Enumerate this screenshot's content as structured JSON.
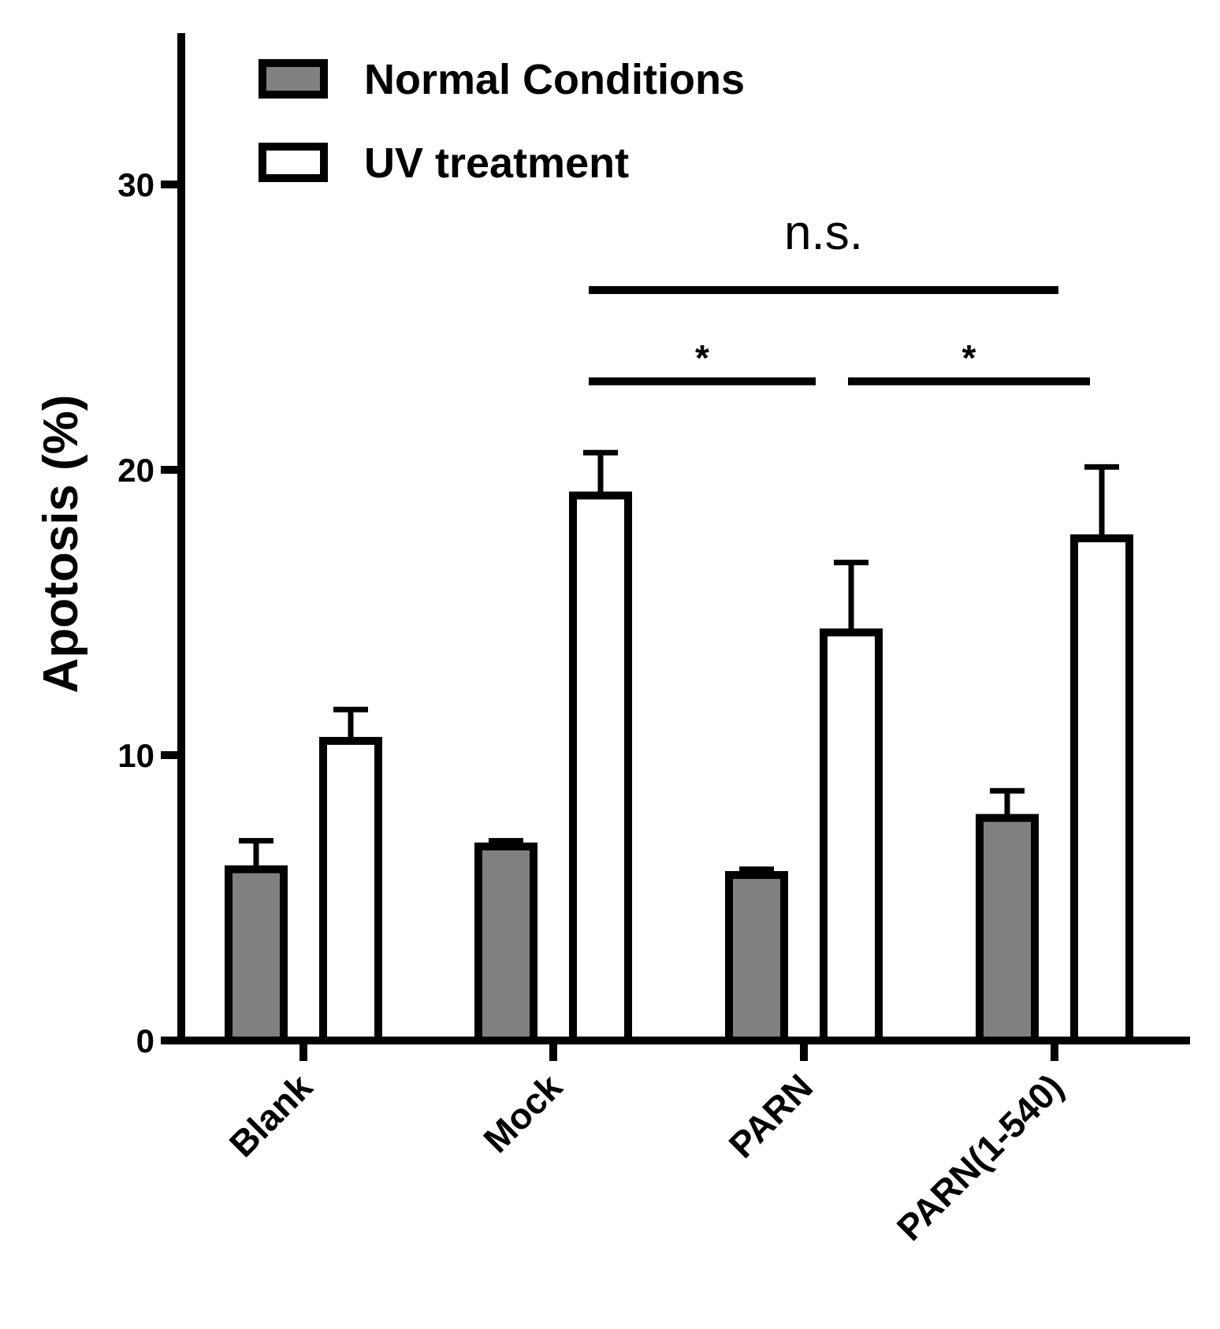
{
  "chart_data": {
    "type": "bar",
    "title": "",
    "xlabel": "",
    "ylabel": "Apotosis (%)",
    "ylim": [
      0,
      35
    ],
    "yticks": [
      0,
      10,
      20,
      30
    ],
    "categories": [
      "Blank",
      "Mock",
      "PARN",
      "PARN(1-540)"
    ],
    "series": [
      {
        "name": "Normal Conditions",
        "color": "#808080",
        "values": [
          6.0,
          6.8,
          5.8,
          7.8
        ],
        "errors": [
          1.0,
          0.2,
          0.2,
          0.95
        ]
      },
      {
        "name": "UV treatment",
        "color": "#ffffff",
        "values": [
          10.5,
          19.1,
          14.3,
          17.6
        ],
        "errors": [
          1.1,
          1.5,
          2.45,
          2.5
        ]
      }
    ],
    "legend_position": "top-left",
    "significance": [
      {
        "label": "n.s.",
        "from": "Mock",
        "to": "PARN(1-540)",
        "level": 26.3
      },
      {
        "label": "*",
        "from": "Mock",
        "to": "PARN",
        "level": 23.1
      },
      {
        "label": "*",
        "from": "PARN",
        "to": "PARN(1-540)",
        "level": 23.1
      }
    ]
  }
}
